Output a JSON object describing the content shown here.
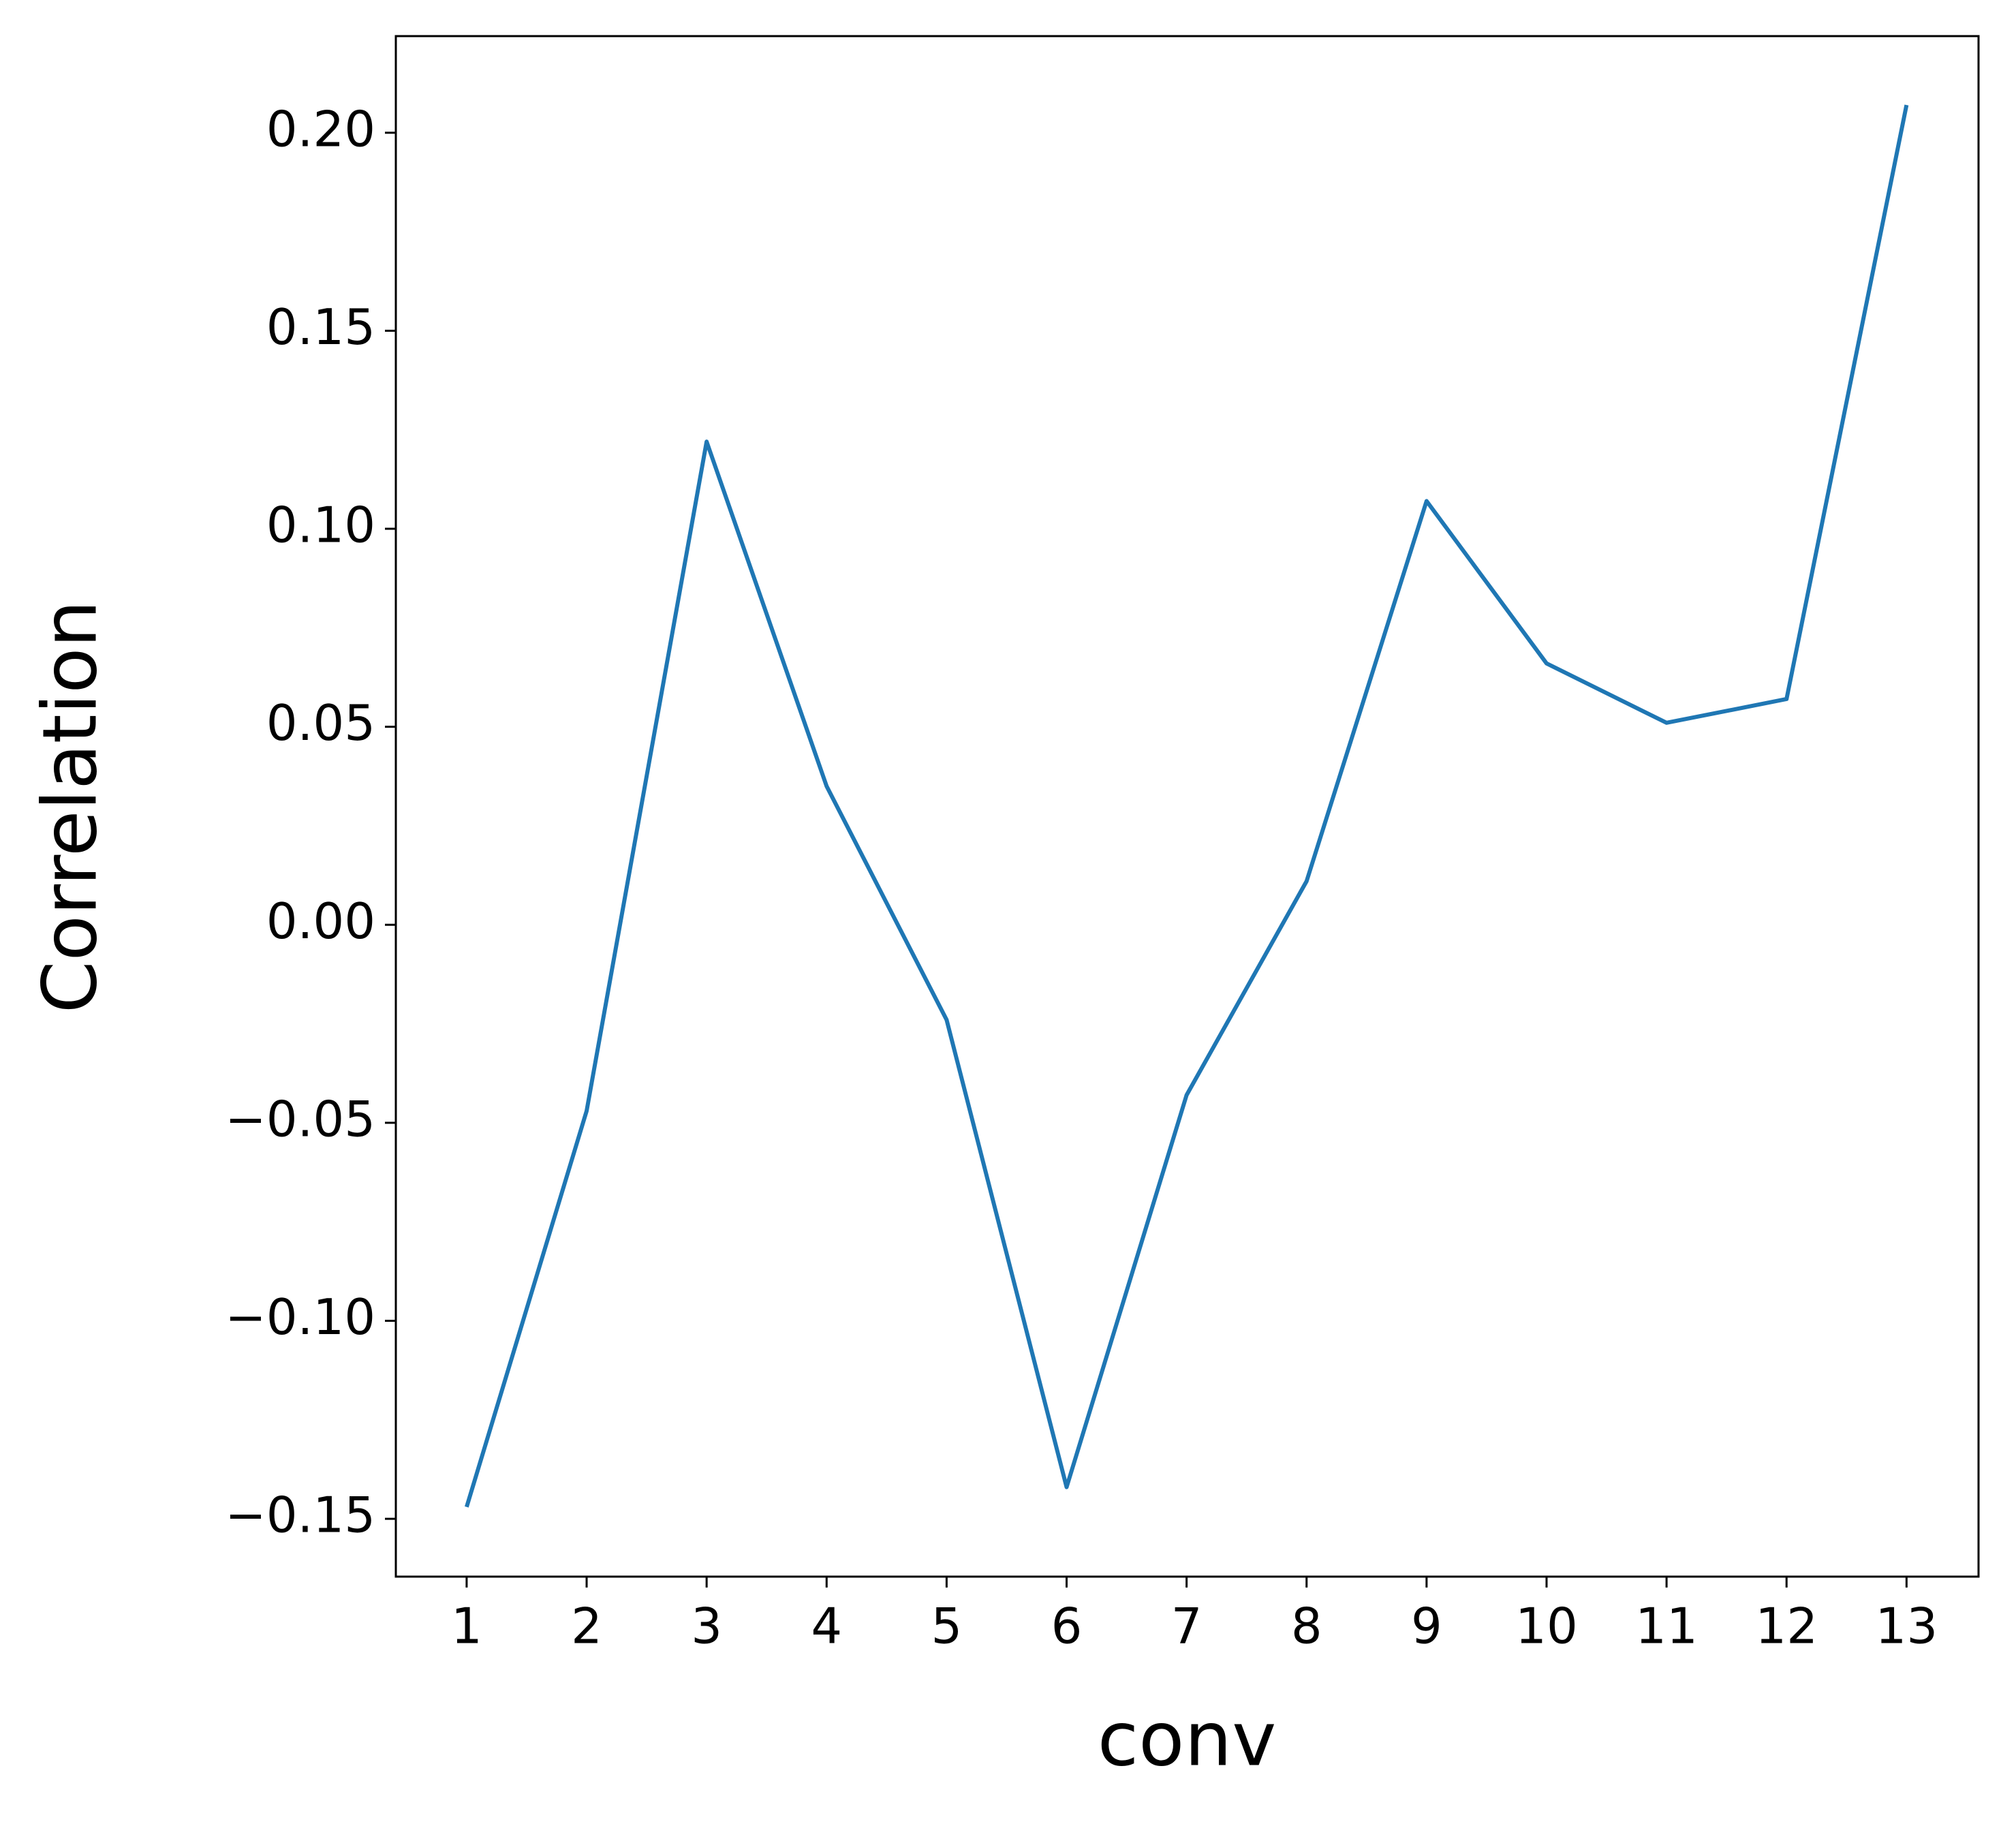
{
  "chart_data": {
    "type": "line",
    "xlabel": "conv",
    "ylabel": "Correlation",
    "x": [
      1,
      2,
      3,
      4,
      5,
      6,
      7,
      8,
      9,
      10,
      11,
      12,
      13
    ],
    "series": [
      {
        "color": "#1f77b4",
        "values": [
          -0.147,
          -0.047,
          0.122,
          0.035,
          -0.024,
          -0.142,
          -0.043,
          0.011,
          0.107,
          0.066,
          0.051,
          0.057,
          0.207
        ]
      }
    ],
    "xlim": [
      0.41,
      13.6
    ],
    "xticks": [
      1,
      2,
      3,
      4,
      5,
      6,
      7,
      8,
      9,
      10,
      11,
      12,
      13
    ],
    "ylim": [
      -0.1646,
      0.2244
    ],
    "yticks": [
      {
        "value": -0.15,
        "label": "−0.15"
      },
      {
        "value": -0.1,
        "label": "−0.10"
      },
      {
        "value": -0.05,
        "label": "−0.05"
      },
      {
        "value": 0,
        "label": "0.00"
      },
      {
        "value": 0.05,
        "label": "0.05"
      },
      {
        "value": 0.1,
        "label": "0.10"
      },
      {
        "value": 0.15,
        "label": "0.15"
      },
      {
        "value": 0.2,
        "label": "0.20"
      }
    ]
  }
}
